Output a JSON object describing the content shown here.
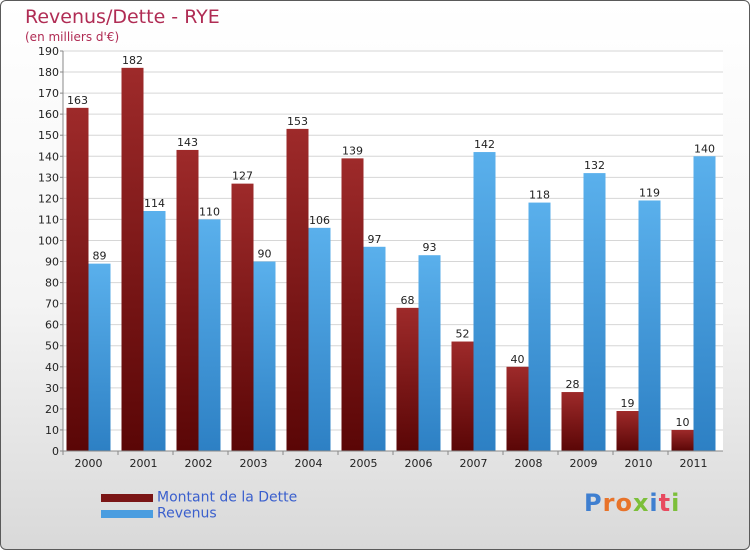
{
  "colors": {
    "dette": "#7a1515",
    "revenus": "#4a9de0",
    "title": "#b02c54",
    "legend_text": "#3a5fcd"
  },
  "logo_text": "Proxiti",
  "chart_data": {
    "type": "bar",
    "title": "Revenus/Dette - RYE",
    "subtitle": "(en milliers d'€)",
    "categories": [
      "2000",
      "2001",
      "2002",
      "2003",
      "2004",
      "2005",
      "2006",
      "2007",
      "2008",
      "2009",
      "2010",
      "2011"
    ],
    "series": [
      {
        "name": "Montant de la Dette",
        "values": [
          163,
          182,
          143,
          127,
          153,
          139,
          68,
          52,
          40,
          28,
          19,
          10
        ]
      },
      {
        "name": "Revenus",
        "values": [
          89,
          114,
          110,
          90,
          106,
          97,
          93,
          142,
          118,
          132,
          119,
          140
        ]
      }
    ],
    "ylim": [
      0,
      190
    ],
    "yticks": [
      "0",
      "10",
      "20",
      "30",
      "40",
      "50",
      "60",
      "70",
      "80",
      "90",
      "100",
      "110",
      "120",
      "130",
      "140",
      "150",
      "160",
      "170",
      "180",
      "190"
    ],
    "grid": true,
    "legend": "bottom-left"
  }
}
